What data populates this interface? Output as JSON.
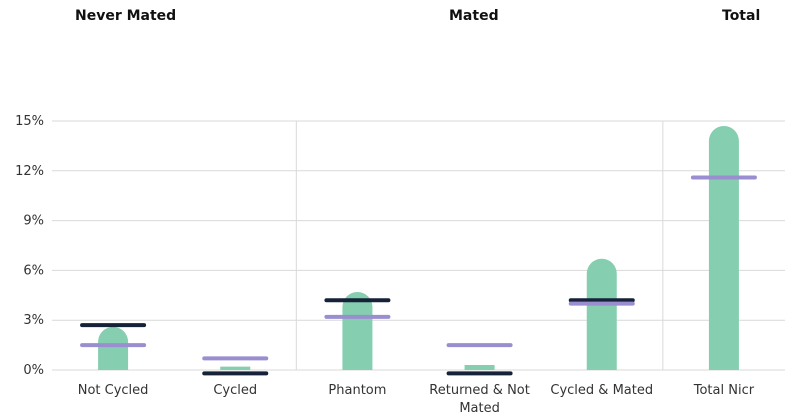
{
  "chart_data": {
    "type": "bar",
    "groups": [
      {
        "label": "Never Mated",
        "categories": [
          "Not Cycled",
          "Cycled"
        ]
      },
      {
        "label": "Mated",
        "categories": [
          "Phantom",
          "Returned & Not Mated",
          "Cycled & Mated"
        ]
      },
      {
        "label": "Total",
        "categories": [
          "Total Nicr"
        ]
      }
    ],
    "categories": [
      "Not Cycled",
      "Cycled",
      "Phantom",
      "Returned & Not Mated",
      "Cycled & Mated",
      "Total Nicr"
    ],
    "category_lines": [
      [
        "Not Cycled"
      ],
      [
        "Cycled"
      ],
      [
        "Phantom"
      ],
      [
        "Returned & Not",
        "Mated"
      ],
      [
        "Cycled & Mated"
      ],
      [
        "Total Nicr"
      ]
    ],
    "series": [
      {
        "type": "bar",
        "color": "#85ceb0",
        "values": [
          2.6,
          0.2,
          4.7,
          0.3,
          6.7,
          14.7
        ]
      },
      {
        "type": "marker",
        "color": "#152238",
        "values": [
          2.7,
          -0.2,
          4.2,
          -0.2,
          4.2,
          null
        ]
      },
      {
        "type": "marker",
        "color": "#9a8ed0",
        "values": [
          1.5,
          0.7,
          3.2,
          1.5,
          4.0,
          11.6
        ]
      }
    ],
    "ylim": [
      0,
      15
    ],
    "yticks": [
      0,
      3,
      6,
      9,
      12,
      15
    ],
    "ytick_labels": [
      "0%",
      "3%",
      "6%",
      "9%",
      "12%",
      "15%"
    ],
    "grid": true
  }
}
